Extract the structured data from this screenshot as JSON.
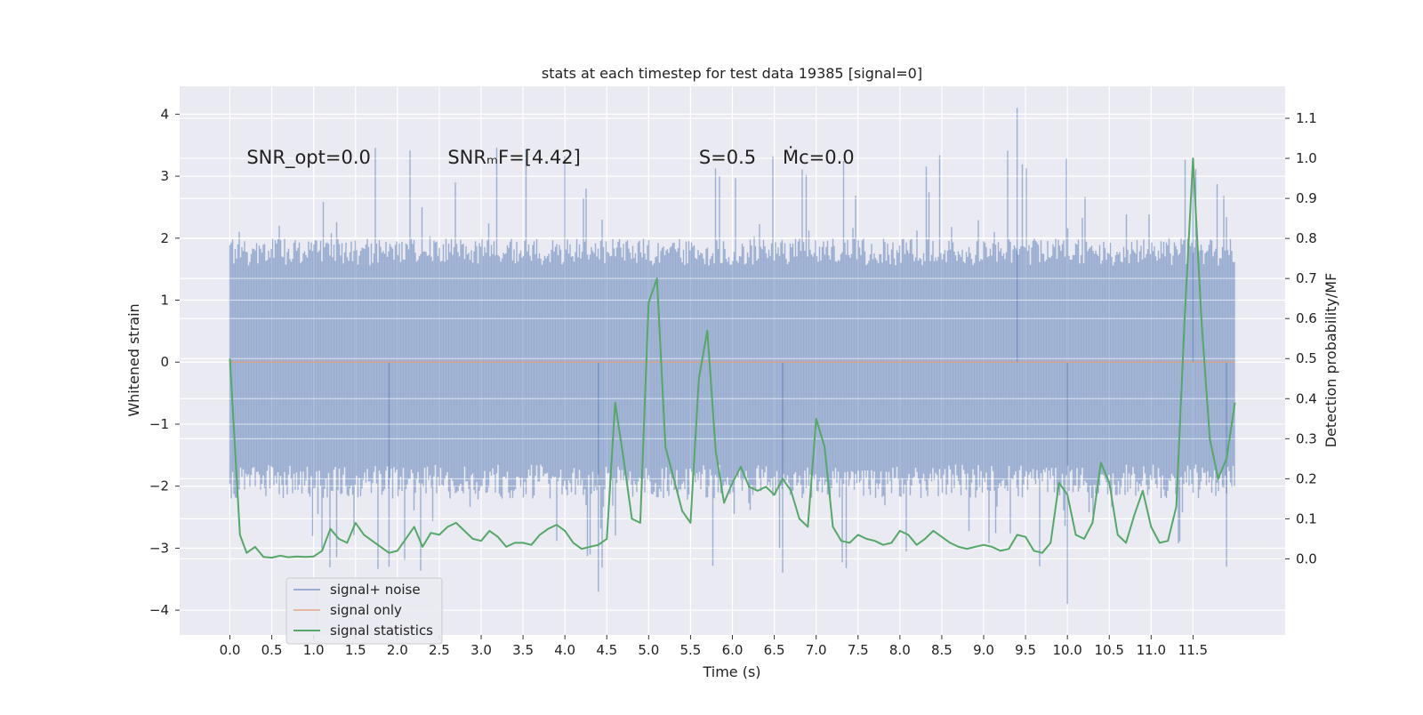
{
  "chart_data": {
    "type": "line",
    "title": "stats at each timestep for test data 19385 [signal=0]",
    "xlabel": "Time (s)",
    "ylabel_left": "Whitened strain",
    "ylabel_right": "Detection probability/MF",
    "xlim": [
      -0.6,
      12.6
    ],
    "ylim_left": [
      -4.4,
      4.45
    ],
    "ylim_right": [
      -0.19,
      1.18
    ],
    "x_ticks": [
      0.0,
      0.5,
      1.0,
      1.5,
      2.0,
      2.5,
      3.0,
      3.5,
      4.0,
      4.5,
      5.0,
      5.5,
      6.0,
      6.5,
      7.0,
      7.5,
      8.0,
      8.5,
      9.0,
      9.5,
      10.0,
      10.5,
      11.0,
      11.5
    ],
    "x_tick_labels": [
      "0.0",
      "0.5",
      "1.0",
      "1.5",
      "2.0",
      "2.5",
      "3.0",
      "3.5",
      "4.0",
      "4.5",
      "5.0",
      "5.5",
      "6.0",
      "6.5",
      "7.0",
      "7.5",
      "8.0",
      "8.5",
      "9.0",
      "9.5",
      "10.0",
      "10.5",
      "11.0",
      "11.5"
    ],
    "y_left_ticks": [
      4,
      3,
      2,
      1,
      0,
      -1,
      -2,
      -3,
      -4
    ],
    "y_left_tick_labels": [
      "4",
      "3",
      "2",
      "1",
      "0",
      "−1",
      "−2",
      "−3",
      "−4"
    ],
    "y_right_ticks": [
      1.1,
      1.0,
      0.9,
      0.8,
      0.7,
      0.6,
      0.5,
      0.4,
      0.3,
      0.2,
      0.1,
      0.0
    ],
    "y_right_tick_labels": [
      "1.1",
      "1.0",
      "0.9",
      "0.8",
      "0.7",
      "0.6",
      "0.5",
      "0.4",
      "0.3",
      "0.2",
      "0.1",
      "0.0"
    ],
    "grid": true,
    "legend_position": "lower-left",
    "annotations": [
      {
        "id": "snr-opt",
        "text": "SNR_opt=0.0",
        "x": 0.2,
        "y": 3.3
      },
      {
        "id": "snr-mf",
        "text": "SNRₘF=[4.42]",
        "x": 2.6,
        "y": 3.3
      },
      {
        "id": "s-value",
        "text": "S=0.5",
        "x": 5.6,
        "y": 3.3
      },
      {
        "id": "mc-value",
        "text": "Ṁc=0.0",
        "x": 6.6,
        "y": 3.3
      }
    ],
    "series": [
      {
        "name": "signal+ noise",
        "color": "#4c72b0",
        "axis": "left",
        "x_range": [
          0.0,
          12.0
        ],
        "envelope": {
          "typical_max": 2.0,
          "typical_min": -2.2,
          "peak_max": 4.1,
          "peak_min": -3.9
        }
      },
      {
        "name": "signal only",
        "color": "#dd8452",
        "axis": "left",
        "x": [
          0.0,
          12.0
        ],
        "y": [
          0.0,
          0.0
        ]
      },
      {
        "name": "signal statistics",
        "color": "#55a868",
        "axis": "right",
        "x": [
          0.0,
          0.12,
          0.2,
          0.3,
          0.4,
          0.5,
          0.6,
          0.7,
          0.8,
          0.9,
          1.0,
          1.1,
          1.2,
          1.3,
          1.4,
          1.5,
          1.6,
          1.7,
          1.8,
          1.9,
          2.0,
          2.1,
          2.2,
          2.3,
          2.4,
          2.5,
          2.6,
          2.7,
          2.8,
          2.9,
          3.0,
          3.1,
          3.2,
          3.3,
          3.4,
          3.5,
          3.6,
          3.7,
          3.8,
          3.9,
          4.0,
          4.1,
          4.2,
          4.3,
          4.4,
          4.5,
          4.6,
          4.7,
          4.8,
          4.9,
          5.0,
          5.1,
          5.2,
          5.3,
          5.4,
          5.5,
          5.6,
          5.7,
          5.8,
          5.9,
          6.0,
          6.1,
          6.2,
          6.3,
          6.4,
          6.5,
          6.6,
          6.7,
          6.8,
          6.9,
          7.0,
          7.1,
          7.2,
          7.3,
          7.4,
          7.5,
          7.6,
          7.7,
          7.8,
          7.9,
          8.0,
          8.1,
          8.2,
          8.3,
          8.4,
          8.5,
          8.6,
          8.7,
          8.8,
          8.9,
          9.0,
          9.1,
          9.2,
          9.3,
          9.4,
          9.5,
          9.6,
          9.7,
          9.8,
          9.9,
          10.0,
          10.1,
          10.2,
          10.3,
          10.4,
          10.5,
          10.6,
          10.7,
          10.8,
          10.9,
          11.0,
          11.1,
          11.2,
          11.3,
          11.4,
          11.5,
          11.6,
          11.7,
          11.8,
          11.9,
          12.0
        ],
        "y": [
          0.5,
          0.06,
          0.015,
          0.03,
          0.005,
          0.003,
          0.008,
          0.004,
          0.006,
          0.005,
          0.006,
          0.02,
          0.075,
          0.05,
          0.04,
          0.09,
          0.06,
          0.045,
          0.03,
          0.015,
          0.02,
          0.05,
          0.08,
          0.03,
          0.065,
          0.06,
          0.08,
          0.09,
          0.07,
          0.05,
          0.045,
          0.07,
          0.055,
          0.03,
          0.04,
          0.04,
          0.035,
          0.06,
          0.075,
          0.085,
          0.07,
          0.04,
          0.025,
          0.03,
          0.035,
          0.05,
          0.39,
          0.25,
          0.1,
          0.09,
          0.64,
          0.7,
          0.28,
          0.2,
          0.12,
          0.09,
          0.45,
          0.57,
          0.27,
          0.14,
          0.19,
          0.23,
          0.18,
          0.17,
          0.18,
          0.16,
          0.2,
          0.17,
          0.1,
          0.08,
          0.35,
          0.28,
          0.08,
          0.045,
          0.04,
          0.06,
          0.05,
          0.045,
          0.035,
          0.04,
          0.07,
          0.06,
          0.035,
          0.05,
          0.07,
          0.055,
          0.04,
          0.03,
          0.025,
          0.03,
          0.035,
          0.03,
          0.02,
          0.025,
          0.06,
          0.055,
          0.02,
          0.015,
          0.04,
          0.19,
          0.16,
          0.06,
          0.05,
          0.09,
          0.24,
          0.19,
          0.06,
          0.04,
          0.11,
          0.17,
          0.08,
          0.04,
          0.045,
          0.13,
          0.6,
          1.0,
          0.6,
          0.3,
          0.2,
          0.25,
          0.39
        ]
      }
    ]
  }
}
